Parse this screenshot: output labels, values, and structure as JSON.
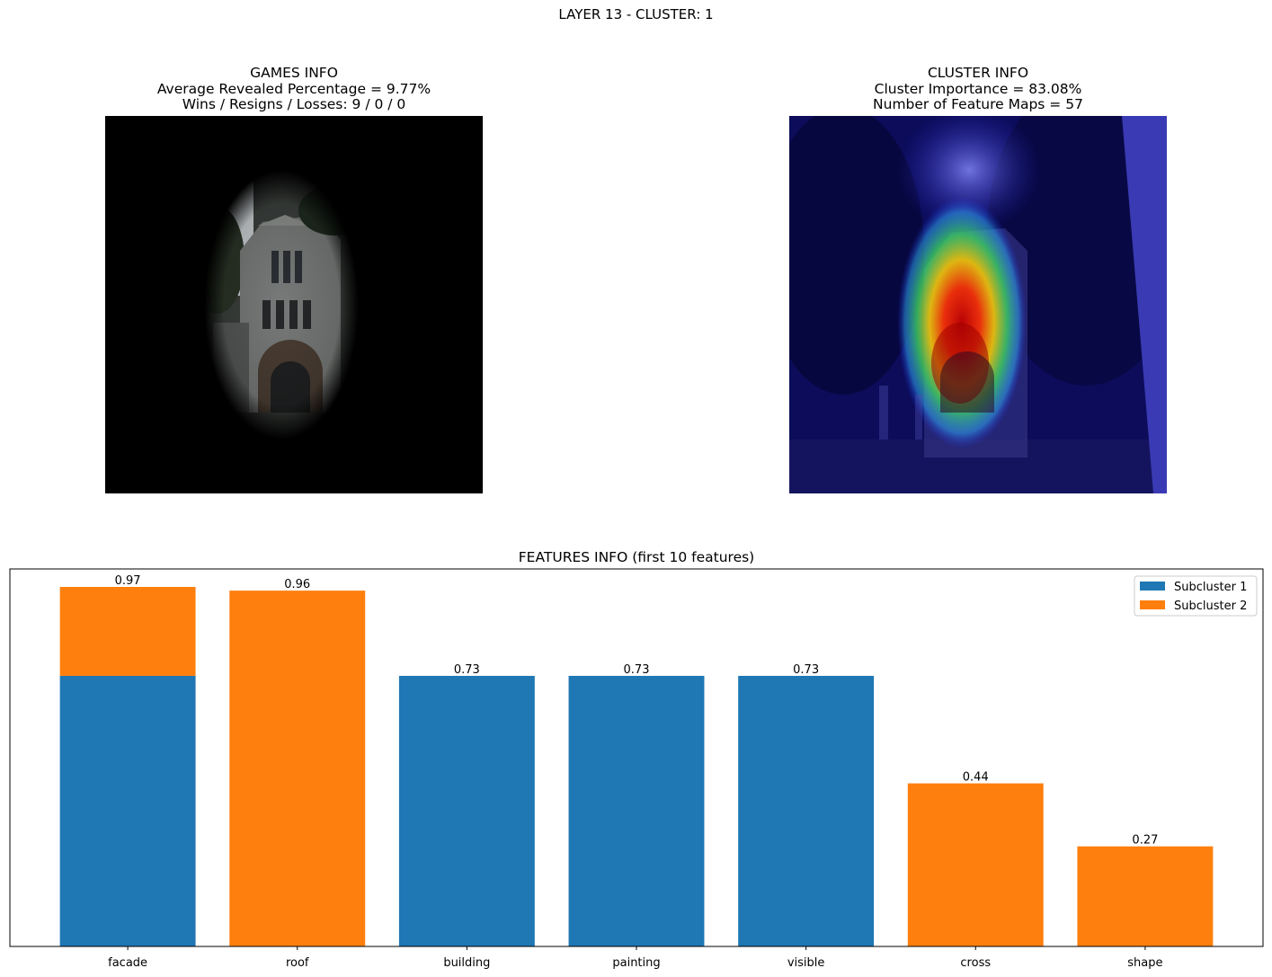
{
  "figure": {
    "suptitle": "LAYER 13 - CLUSTER: 1"
  },
  "games_info": {
    "title": "GAMES INFO",
    "line1": "Average Revealed Percentage = 9.77%",
    "line2": "Wins / Resigns / Losses: 9 / 0 / 0"
  },
  "cluster_info": {
    "title": "CLUSTER INFO",
    "line1": "Cluster Importance = 83.08%",
    "line2": "Number of Feature Maps = 57"
  },
  "colors": {
    "subcluster_1": "#1f77b4",
    "subcluster_2": "#ff7f0e"
  },
  "chart_data": {
    "type": "bar",
    "title": "FEATURES INFO (first 10 features)",
    "categories": [
      "facade",
      "roof",
      "building",
      "painting",
      "visible",
      "cross",
      "shape"
    ],
    "series": [
      {
        "name": "Subcluster 1",
        "values": [
          0.73,
          0,
          0.73,
          0.73,
          0.73,
          0,
          0
        ]
      },
      {
        "name": "Subcluster 2",
        "values": [
          0.24,
          0.96,
          0,
          0,
          0,
          0.44,
          0.27
        ]
      }
    ],
    "totals": [
      0.97,
      0.96,
      0.73,
      0.73,
      0.73,
      0.44,
      0.27
    ],
    "data_labels": [
      "0.97",
      "0.96",
      "0.73",
      "0.73",
      "0.73",
      "0.44",
      "0.27"
    ],
    "ylim": [
      0,
      1.0185
    ],
    "stacked": true,
    "yticks_visible": false,
    "grid": false,
    "legend_position": "top-right"
  }
}
